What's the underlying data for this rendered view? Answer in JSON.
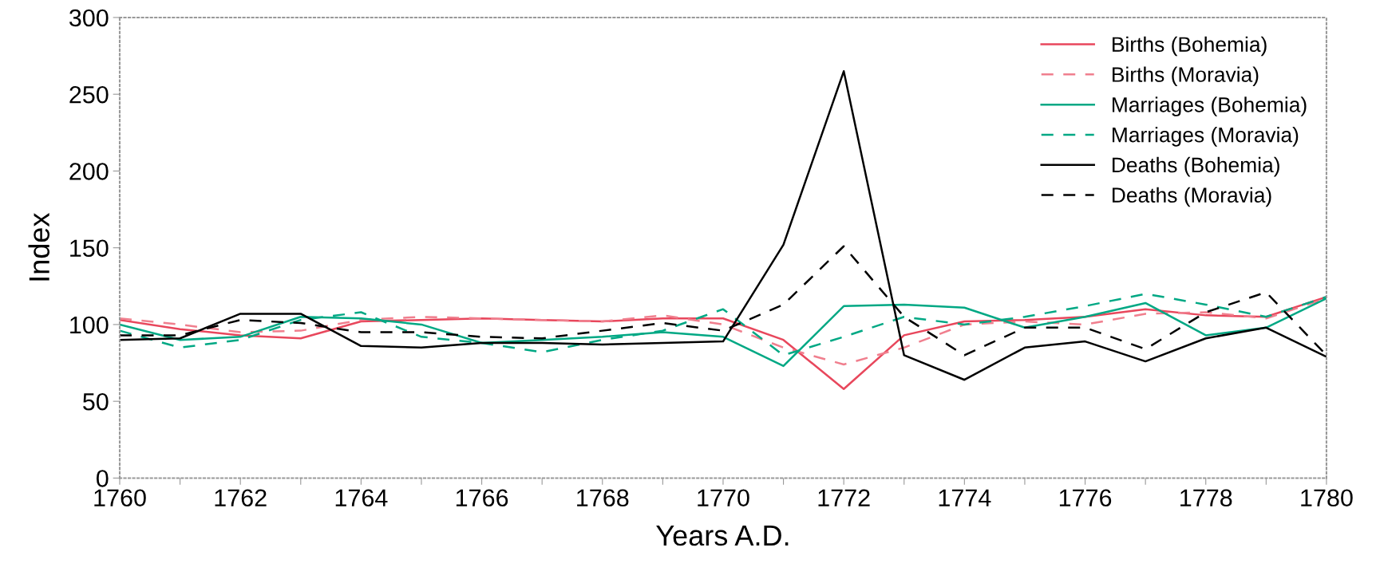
{
  "chart_data": {
    "type": "line",
    "xlabel": "Years A.D.",
    "ylabel": "Index",
    "x": [
      1760,
      1761,
      1762,
      1763,
      1764,
      1765,
      1766,
      1767,
      1768,
      1769,
      1770,
      1771,
      1772,
      1773,
      1774,
      1775,
      1776,
      1777,
      1778,
      1779,
      1780
    ],
    "xlim": [
      1760,
      1780
    ],
    "xticks": [
      1760,
      {
        "value": 1761,
        "label": null
      },
      1762,
      {
        "value": 1763,
        "label": null
      },
      1764,
      {
        "value": 1765,
        "label": null
      },
      1766,
      {
        "value": 1767,
        "label": null
      },
      1768,
      {
        "value": 1769,
        "label": null
      },
      1770,
      {
        "value": 1771,
        "label": null
      },
      1772,
      {
        "value": 1773,
        "label": null
      },
      1774,
      {
        "value": 1775,
        "label": null
      },
      1776,
      {
        "value": 1777,
        "label": null
      },
      1778,
      {
        "value": 1779,
        "label": null
      },
      1780
    ],
    "ylim": [
      0,
      300
    ],
    "yticks": [
      0,
      50,
      100,
      150,
      200,
      250,
      300
    ],
    "grid": false,
    "legend": "top right",
    "marker": "none",
    "series": [
      {
        "name": "Births (Bohemia)",
        "color": "#e8475c",
        "line_style": "solid",
        "values": [
          103,
          97,
          93,
          91,
          102,
          103,
          104,
          103,
          102,
          104,
          104,
          90,
          58,
          93,
          102,
          103,
          105,
          110,
          106,
          105,
          118
        ]
      },
      {
        "name": "Births (Moravia)",
        "color": "#f07f8e",
        "line_style": "dashed",
        "values": [
          104,
          100,
          95,
          96,
          103,
          105,
          104,
          103,
          102,
          106,
          100,
          85,
          74,
          85,
          100,
          102,
          100,
          107,
          108,
          104,
          117
        ]
      },
      {
        "name": "Marriages (Bohemia)",
        "color": "#00a884",
        "line_style": "solid",
        "values": [
          100,
          90,
          92,
          105,
          104,
          100,
          88,
          90,
          92,
          95,
          92,
          73,
          112,
          113,
          111,
          98,
          105,
          114,
          93,
          98,
          117
        ]
      },
      {
        "name": "Marriages (Moravia)",
        "color": "#00a884",
        "line_style": "dashed",
        "values": [
          96,
          85,
          90,
          103,
          108,
          92,
          88,
          82,
          90,
          96,
          110,
          80,
          92,
          105,
          100,
          105,
          112,
          120,
          113,
          105,
          118
        ]
      },
      {
        "name": "Deaths (Bohemia)",
        "color": "#000000",
        "line_style": "solid",
        "values": [
          90,
          91,
          107,
          107,
          86,
          85,
          88,
          88,
          87,
          88,
          89,
          152,
          265,
          80,
          64,
          85,
          89,
          76,
          91,
          98,
          79
        ]
      },
      {
        "name": "Deaths (Moravia)",
        "color": "#000000",
        "line_style": "dashed",
        "values": [
          93,
          93,
          103,
          101,
          95,
          95,
          92,
          91,
          96,
          101,
          96,
          113,
          151,
          105,
          80,
          98,
          98,
          84,
          108,
          121,
          80
        ]
      }
    ]
  }
}
